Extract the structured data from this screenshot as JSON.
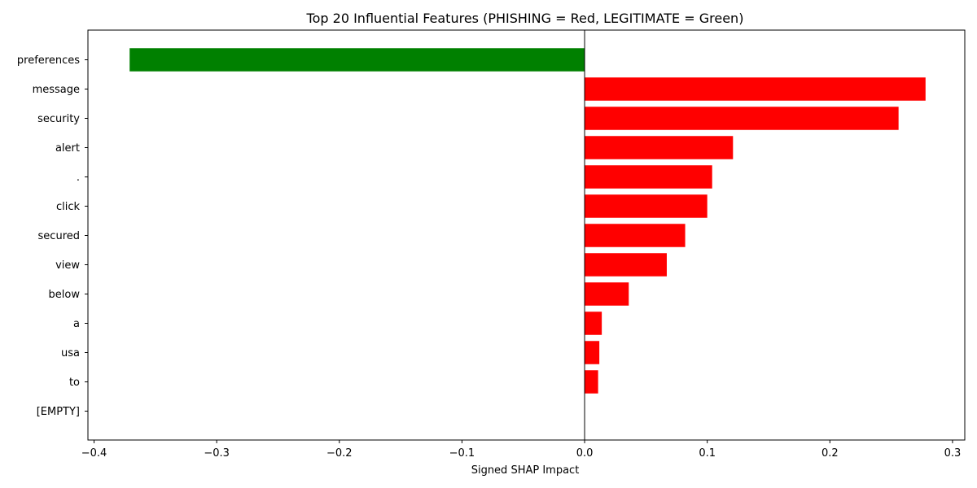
{
  "chart_data": {
    "type": "bar",
    "orientation": "horizontal",
    "title": "Top 20 Influential Features (PHISHING = Red, LEGITIMATE = Green)",
    "xlabel": "Signed SHAP Impact",
    "ylabel": "",
    "xlim": [
      -0.405,
      0.31
    ],
    "xticks": [
      -0.4,
      -0.3,
      -0.2,
      -0.1,
      0.0,
      0.1,
      0.2,
      0.3
    ],
    "xtick_labels": [
      "−0.4",
      "−0.3",
      "−0.2",
      "−0.1",
      "0.0",
      "0.1",
      "0.2",
      "0.3"
    ],
    "categories": [
      "preferences",
      "message",
      "security",
      "alert",
      ".",
      "click",
      "secured",
      "view",
      "below",
      "a",
      "usa",
      "to",
      "[EMPTY]"
    ],
    "values": [
      -0.371,
      0.278,
      0.256,
      0.121,
      0.104,
      0.1,
      0.082,
      0.067,
      0.036,
      0.014,
      0.012,
      0.011,
      0.0
    ],
    "colors": {
      "phishing": "#ff0000",
      "legitimate": "#008000"
    },
    "zero_line": true,
    "grid": false
  }
}
